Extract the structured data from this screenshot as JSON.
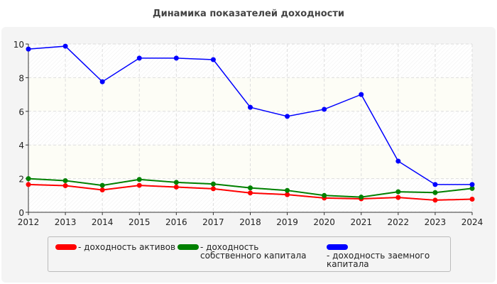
{
  "chart_data": {
    "type": "line",
    "title": "Динамика показателей доходности",
    "categories": [
      "2012",
      "2013",
      "2014",
      "2015",
      "2016",
      "2017",
      "2018",
      "2019",
      "2020",
      "2021",
      "2022",
      "2023",
      "2024"
    ],
    "ylim": [
      0,
      10
    ],
    "yticks": [
      "0",
      "2",
      "4",
      "6",
      "8",
      "10"
    ],
    "grid": true,
    "legend_position": "bottom",
    "series": [
      {
        "name": "- доходность активов",
        "color": "#ff0000",
        "values": [
          1.65,
          1.58,
          1.33,
          1.6,
          1.5,
          1.4,
          1.15,
          1.05,
          0.85,
          0.8,
          0.88,
          0.72,
          0.78
        ]
      },
      {
        "name": "- доходность собственного капитала",
        "color": "#008000",
        "values": [
          2.0,
          1.88,
          1.6,
          1.95,
          1.78,
          1.68,
          1.45,
          1.3,
          1.0,
          0.9,
          1.22,
          1.17,
          1.42
        ]
      },
      {
        "name": "- доходность заемного капитала",
        "color": "#0000ff",
        "values": [
          9.7,
          9.87,
          7.76,
          9.16,
          9.16,
          9.07,
          6.24,
          5.7,
          6.12,
          7.0,
          3.04,
          1.65,
          1.65
        ]
      }
    ]
  }
}
